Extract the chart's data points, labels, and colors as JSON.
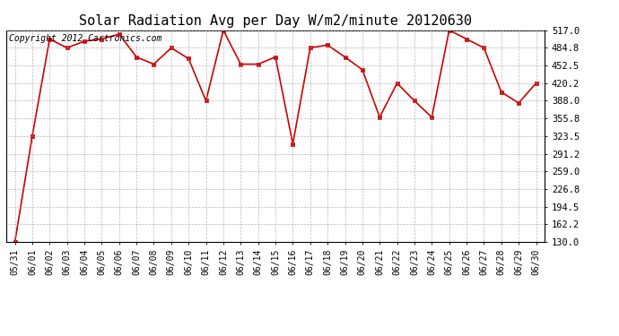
{
  "title": "Solar Radiation Avg per Day W/m2/minute 20120630",
  "copyright": "Copyright 2012 Cartronics.com",
  "dates": [
    "05/31",
    "06/01",
    "06/02",
    "06/03",
    "06/04",
    "06/05",
    "06/06",
    "06/07",
    "06/08",
    "06/09",
    "06/10",
    "06/11",
    "06/12",
    "06/13",
    "06/14",
    "06/15",
    "06/16",
    "06/17",
    "06/18",
    "06/19",
    "06/20",
    "06/21",
    "06/22",
    "06/23",
    "06/24",
    "06/25",
    "06/26",
    "06/27",
    "06/28",
    "06/29",
    "06/30"
  ],
  "values": [
    130.0,
    323.5,
    501.0,
    484.8,
    497.0,
    501.0,
    510.0,
    468.0,
    455.0,
    484.8,
    465.0,
    388.0,
    517.0,
    455.0,
    455.0,
    468.0,
    309.0,
    484.8,
    490.0,
    468.0,
    445.0,
    358.0,
    420.2,
    388.0,
    358.0,
    517.0,
    501.0,
    484.8,
    404.0,
    384.0,
    420.2
  ],
  "ylim": [
    130.0,
    517.0
  ],
  "yticks": [
    130.0,
    162.2,
    194.5,
    226.8,
    259.0,
    291.2,
    323.5,
    355.8,
    388.0,
    420.2,
    452.5,
    484.8,
    517.0
  ],
  "line_color": "#cc0000",
  "marker_color": "#cc0000",
  "bg_color": "#ffffff",
  "grid_color": "#999999",
  "title_fontsize": 11,
  "copyright_fontsize": 7,
  "tick_fontsize": 7,
  "ytick_fontsize": 7.5
}
